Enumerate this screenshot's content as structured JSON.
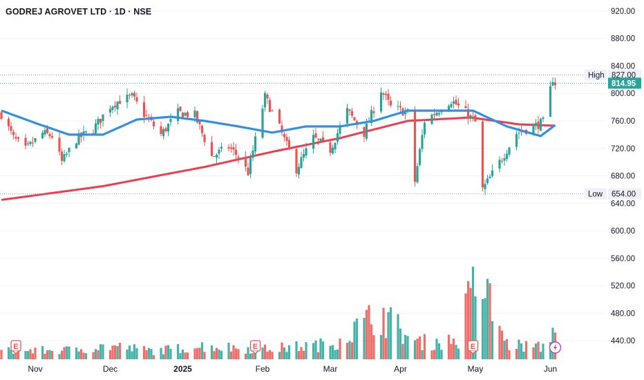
{
  "header": {
    "title": "GODREJ AGROVET LTD · 1D · NSE"
  },
  "markers": {
    "high_label": "High",
    "low_label": "Low",
    "earnings_letter": "E"
  },
  "colors": {
    "up": "#26a69a",
    "down": "#ef5350",
    "ma_short": "#2f8fea",
    "ma_long": "#ef3b4c",
    "price_tag": "#26a69a",
    "grid": "#f0f3fa"
  },
  "chart_data": {
    "type": "candlestick",
    "symbol": "GODREJ AGROVET LTD",
    "interval": "1D",
    "exchange": "NSE",
    "y_ticks": [
      "920.00",
      "880.00",
      "840.00",
      "800.00",
      "760.00",
      "720.00",
      "680.00",
      "640.00",
      "600.00",
      "560.00",
      "520.00",
      "480.00",
      "440.00"
    ],
    "ylim": [
      413,
      932
    ],
    "x_ticks": [
      "Nov",
      "Dec",
      "2025",
      "Feb",
      "Mar",
      "Apr",
      "May",
      "Jun"
    ],
    "last_price": 814.95,
    "high": 827.0,
    "low": 654.0,
    "ohlc_anchors": [
      [
        "2024-10-18",
        770
      ],
      [
        "2024-10-23",
        735
      ],
      [
        "2024-10-28",
        718
      ],
      [
        "2024-11-04",
        742
      ],
      [
        "2024-11-08",
        738
      ],
      [
        "2024-11-12",
        700
      ],
      [
        "2024-11-18",
        733
      ],
      [
        "2024-11-25",
        748
      ],
      [
        "2024-12-02",
        782
      ],
      [
        "2024-12-06",
        790
      ],
      [
        "2024-12-11",
        795
      ],
      [
        "2024-12-16",
        770
      ],
      [
        "2024-12-23",
        740
      ],
      [
        "2024-12-30",
        772
      ],
      [
        "2025-01-06",
        768
      ],
      [
        "2025-01-13",
        708
      ],
      [
        "2025-01-20",
        722
      ],
      [
        "2025-01-24",
        708
      ],
      [
        "2025-01-28",
        685
      ],
      [
        "2025-02-04",
        795
      ],
      [
        "2025-02-10",
        750
      ],
      [
        "2025-02-17",
        690
      ],
      [
        "2025-02-24",
        735
      ],
      [
        "2025-03-03",
        718
      ],
      [
        "2025-03-10",
        775
      ],
      [
        "2025-03-17",
        742
      ],
      [
        "2025-03-24",
        805
      ],
      [
        "2025-03-28",
        780
      ],
      [
        "2025-04-04",
        772
      ],
      [
        "2025-04-07",
        672
      ],
      [
        "2025-04-11",
        760
      ],
      [
        "2025-04-22",
        790
      ],
      [
        "2025-04-28",
        772
      ],
      [
        "2025-05-02",
        758
      ],
      [
        "2025-05-05",
        660
      ],
      [
        "2025-05-12",
        700
      ],
      [
        "2025-05-19",
        742
      ],
      [
        "2025-05-26",
        752
      ],
      [
        "2025-05-30",
        758
      ],
      [
        "2025-06-03",
        822
      ],
      [
        "2025-06-04",
        814.95
      ]
    ],
    "ma_short_anchors": [
      [
        "2024-10-18",
        775
      ],
      [
        "2024-11-01",
        757
      ],
      [
        "2024-11-15",
        740
      ],
      [
        "2024-11-29",
        740
      ],
      [
        "2024-12-13",
        762
      ],
      [
        "2024-12-27",
        766
      ],
      [
        "2025-01-10",
        760
      ],
      [
        "2025-01-24",
        752
      ],
      [
        "2025-02-07",
        743
      ],
      [
        "2025-02-21",
        752
      ],
      [
        "2025-03-07",
        752
      ],
      [
        "2025-03-21",
        760
      ],
      [
        "2025-04-04",
        775
      ],
      [
        "2025-04-18",
        775
      ],
      [
        "2025-05-01",
        775
      ],
      [
        "2025-05-15",
        752
      ],
      [
        "2025-05-29",
        738
      ],
      [
        "2025-06-04",
        754
      ]
    ],
    "ma_long_anchors": [
      [
        "2024-10-18",
        645
      ],
      [
        "2024-11-29",
        665
      ],
      [
        "2025-01-10",
        693
      ],
      [
        "2025-02-07",
        715
      ],
      [
        "2025-03-07",
        735
      ],
      [
        "2025-04-04",
        760
      ],
      [
        "2025-04-30",
        765
      ],
      [
        "2025-05-20",
        755
      ],
      [
        "2025-06-04",
        753
      ]
    ],
    "volume_anchors": [
      [
        "2024-10-18",
        0.1
      ],
      [
        "2024-11-15",
        0.11
      ],
      [
        "2024-12-02",
        0.16
      ],
      [
        "2024-12-20",
        0.1
      ],
      [
        "2025-01-10",
        0.16
      ],
      [
        "2025-02-03",
        0.12
      ],
      [
        "2025-03-03",
        0.18
      ],
      [
        "2025-03-24",
        0.55
      ],
      [
        "2025-04-07",
        0.2
      ],
      [
        "2025-04-25",
        0.22
      ],
      [
        "2025-05-02",
        1.0
      ],
      [
        "2025-05-06",
        0.8
      ],
      [
        "2025-05-15",
        0.18
      ],
      [
        "2025-05-30",
        0.14
      ],
      [
        "2025-06-03",
        0.4
      ],
      [
        "2025-06-04",
        0.28
      ]
    ],
    "earnings_dates": [
      "2024-10-24",
      "2025-01-31",
      "2025-05-01"
    ],
    "event_date": "2025-06-04",
    "grid": true,
    "legend": "none"
  }
}
